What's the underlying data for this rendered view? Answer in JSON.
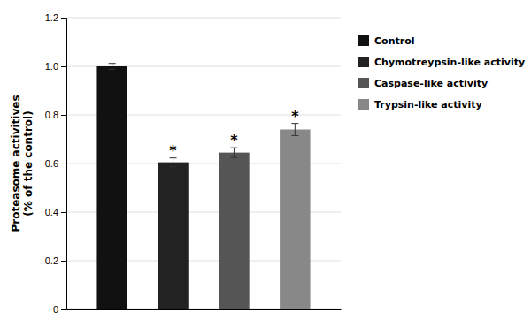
{
  "chart_data": {
    "type": "bar",
    "categories": [
      "Control",
      "Chymotreypsin-like activity",
      "Caspase-like activity",
      "Trypsin-like activity"
    ],
    "values": [
      1.0,
      0.605,
      0.645,
      0.74
    ],
    "errors": [
      0.012,
      0.018,
      0.02,
      0.025
    ],
    "colors": [
      "#111111",
      "#222222",
      "#555555",
      "#888888"
    ],
    "ylabel": "Proteasome activitives\n(% of the control)",
    "ylim": [
      0,
      1.2
    ],
    "yticks": [
      0,
      0.2,
      0.4,
      0.6,
      0.8,
      {
        "value": 1.0,
        "label": "1.0"
      },
      1.2
    ],
    "grid": true,
    "legend": "right",
    "tick_labels": "y",
    "annotations": [
      {
        "text": "*",
        "x": "Chymotreypsin-like activity"
      },
      {
        "text": "*",
        "x": "Caspase-like activity"
      },
      {
        "text": "*",
        "x": "Trypsin-like activity"
      }
    ]
  }
}
